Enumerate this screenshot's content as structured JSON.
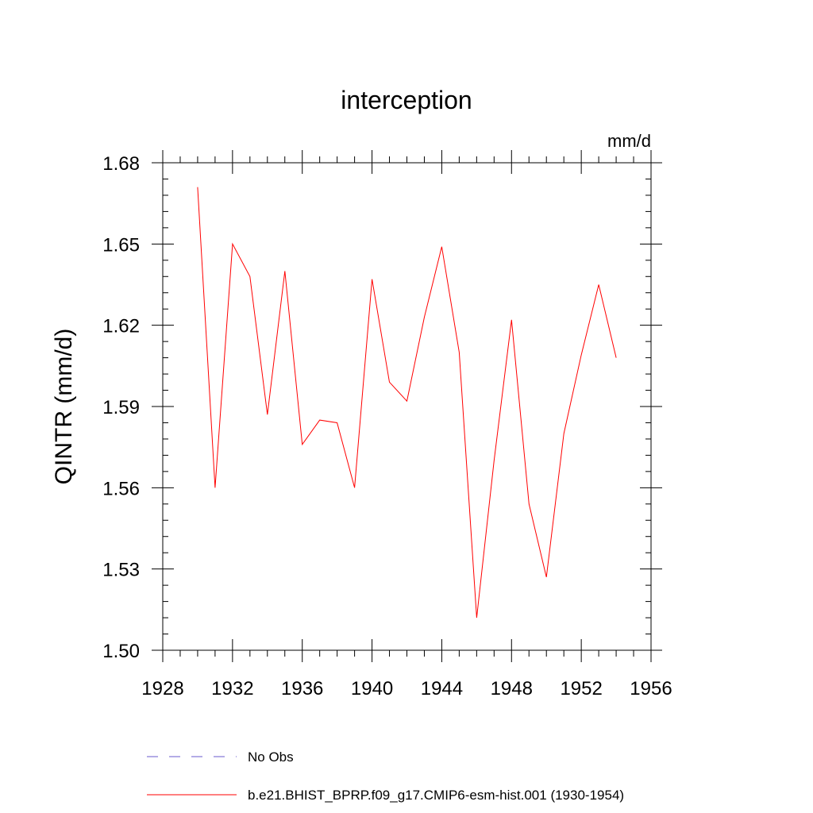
{
  "chart_data": {
    "type": "line",
    "title": "interception",
    "units_label": "mm/d",
    "ylabel": "QINTR  (mm/d)",
    "xlabel": "",
    "xlim": [
      1928,
      1956
    ],
    "ylim": [
      1.5,
      1.68
    ],
    "x_ticks": [
      1928,
      1932,
      1936,
      1940,
      1944,
      1948,
      1952,
      1956
    ],
    "x_tick_labels": [
      "1928",
      "1932",
      "1936",
      "1940",
      "1944",
      "1948",
      "1952",
      "1956"
    ],
    "y_ticks": [
      1.5,
      1.53,
      1.56,
      1.59,
      1.62,
      1.65,
      1.68
    ],
    "y_tick_labels": [
      "1.50",
      "1.53",
      "1.56",
      "1.59",
      "1.62",
      "1.65",
      "1.68"
    ],
    "grid": false,
    "legend_position": "bottom",
    "series": [
      {
        "name": "b.e21.BHIST_BPRP.f09_g17.CMIP6-esm-hist.001 (1930-1954)",
        "color": "#ff0000",
        "dash": "solid",
        "x": [
          1930,
          1931,
          1932,
          1933,
          1934,
          1935,
          1936,
          1937,
          1938,
          1939,
          1940,
          1941,
          1942,
          1943,
          1944,
          1945,
          1946,
          1947,
          1948,
          1949,
          1950,
          1951,
          1952,
          1953,
          1954
        ],
        "values": [
          1.671,
          1.56,
          1.65,
          1.638,
          1.587,
          1.64,
          1.576,
          1.585,
          1.584,
          1.56,
          1.637,
          1.599,
          1.592,
          1.623,
          1.649,
          1.61,
          1.512,
          1.57,
          1.622,
          1.554,
          1.527,
          1.58,
          1.609,
          1.635,
          1.608
        ]
      }
    ],
    "legend": [
      {
        "label": "No Obs",
        "color": "#6a5acd",
        "dash": "dashed"
      },
      {
        "label": "b.e21.BHIST_BPRP.f09_g17.CMIP6-esm-hist.001 (1930-1954)",
        "color": "#ff0000",
        "dash": "solid"
      }
    ]
  }
}
